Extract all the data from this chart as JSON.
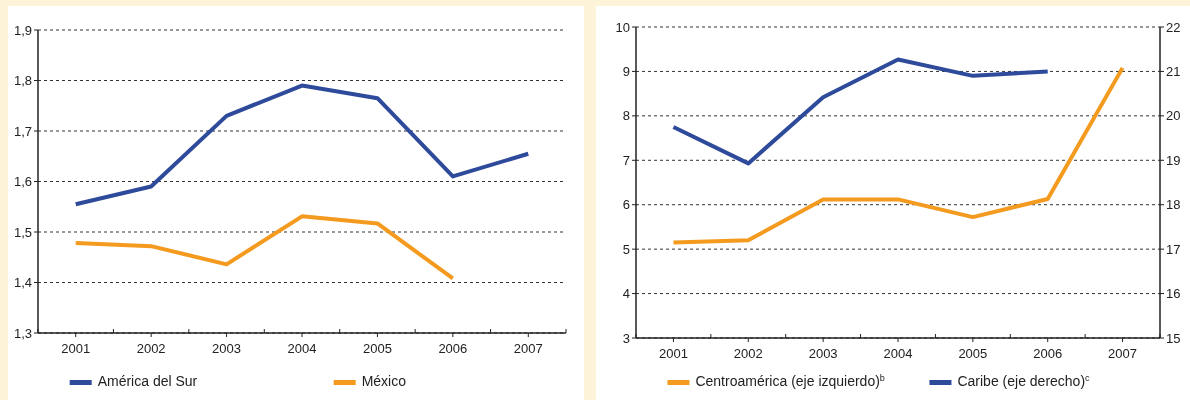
{
  "chart_data": [
    {
      "type": "line",
      "categories": [
        "2001",
        "2002",
        "2003",
        "2004",
        "2005",
        "2006",
        "2007"
      ],
      "series": [
        {
          "name": "América del Sur",
          "color": "#2e4a9b",
          "values": [
            1.555,
            1.59,
            1.73,
            1.79,
            1.765,
            1.61,
            1.655
          ]
        },
        {
          "name": "México",
          "color": "#f39a1f",
          "values": [
            1.478,
            1.472,
            1.436,
            1.531,
            1.517,
            1.408,
            null
          ]
        }
      ],
      "ylim": [
        1.3,
        1.9
      ],
      "yticks": [
        {
          "value": 1.3,
          "label": "1,3"
        },
        {
          "value": 1.4,
          "label": "1,4"
        },
        {
          "value": 1.5,
          "label": "1,5"
        },
        {
          "value": 1.6,
          "label": "1,6"
        },
        {
          "value": 1.7,
          "label": "1,7"
        },
        {
          "value": 1.8,
          "label": "1,8"
        },
        {
          "value": 1.9,
          "label": "1,9"
        }
      ],
      "grid": "y",
      "legend": "bottom",
      "marker": "none",
      "line_style": "solid"
    },
    {
      "type": "line",
      "categories": [
        "2001",
        "2002",
        "2003",
        "2004",
        "2005",
        "2006",
        "2007"
      ],
      "series": [
        {
          "name": "Centroamérica (eje izquierdo)$^{b}$",
          "color": "#f39a1f",
          "values": [
            5.15,
            5.2,
            6.12,
            6.12,
            5.72,
            6.13,
            9.08
          ]
        },
        {
          "name": "Caribe (eje derecho)$^{c}$",
          "color": "#2e4a9b",
          "axis": "y2",
          "values": [
            19.75,
            18.93,
            20.42,
            21.27,
            20.9,
            21.0,
            null
          ]
        }
      ],
      "ylim": [
        3,
        10
      ],
      "yticks": [
        3,
        4,
        5,
        6,
        7,
        8,
        9,
        10
      ],
      "y2lim": [
        15,
        22
      ],
      "y2ticks": [
        15,
        16,
        17,
        18,
        19,
        20,
        21,
        22
      ],
      "grid": "y",
      "legend": "bottom",
      "marker": "none",
      "line_style": "solid"
    }
  ]
}
